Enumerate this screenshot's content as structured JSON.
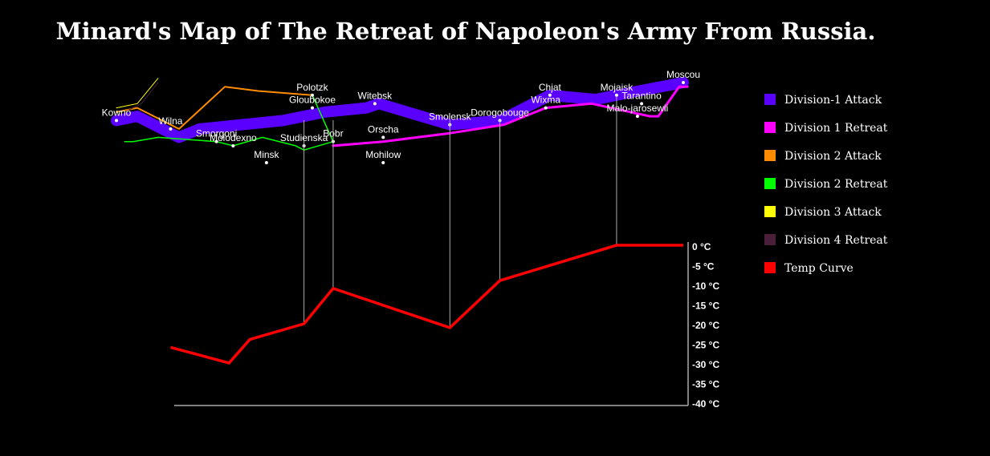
{
  "title": "Minard's Map of The Retreat of Napoleon's Army From Russia.",
  "chart_data": [
    {
      "type": "map",
      "description_role": "troop-movement",
      "cities": [
        {
          "name": "Kowno",
          "lon": 24.0,
          "lat": 54.9
        },
        {
          "name": "Wilna",
          "lon": 25.3,
          "lat": 54.7
        },
        {
          "name": "Smorgoni",
          "lon": 26.4,
          "lat": 54.4
        },
        {
          "name": "Moiodexno",
          "lon": 26.8,
          "lat": 54.3
        },
        {
          "name": "Gloubokoe",
          "lon": 28.7,
          "lat": 55.2
        },
        {
          "name": "Minsk",
          "lon": 27.6,
          "lat": 53.9
        },
        {
          "name": "Studienska",
          "lon": 28.5,
          "lat": 54.3
        },
        {
          "name": "Polotzk",
          "lon": 28.7,
          "lat": 55.5
        },
        {
          "name": "Bobr",
          "lon": 29.2,
          "lat": 54.4
        },
        {
          "name": "Witebsk",
          "lon": 30.2,
          "lat": 55.3
        },
        {
          "name": "Orscha",
          "lon": 30.4,
          "lat": 54.5
        },
        {
          "name": "Mohilow",
          "lon": 30.4,
          "lat": 53.9
        },
        {
          "name": "Smolensk",
          "lon": 32.0,
          "lat": 54.8
        },
        {
          "name": "Dorogobouge",
          "lon": 33.2,
          "lat": 54.9
        },
        {
          "name": "Wixma",
          "lon": 34.3,
          "lat": 55.2
        },
        {
          "name": "Chjat",
          "lon": 34.4,
          "lat": 55.5
        },
        {
          "name": "Mojaisk",
          "lon": 36.0,
          "lat": 55.5
        },
        {
          "name": "Moscou",
          "lon": 37.6,
          "lat": 55.8
        },
        {
          "name": "Tarantino",
          "lon": 36.6,
          "lat": 55.3
        },
        {
          "name": "Malo-jarosewli",
          "lon": 36.5,
          "lat": 55.0
        }
      ],
      "divisions": [
        {
          "name": "Division-1 Attack",
          "color": "#5a00ff",
          "survivors_scale": "thick",
          "path": [
            [
              24.0,
              54.9
            ],
            [
              24.5,
              55.0
            ],
            [
              25.5,
              54.5
            ],
            [
              26.0,
              54.7
            ],
            [
              27.0,
              54.8
            ],
            [
              28.0,
              54.9
            ],
            [
              28.5,
              55.0
            ],
            [
              29.0,
              55.1
            ],
            [
              30.0,
              55.2
            ],
            [
              30.3,
              55.3
            ],
            [
              32.0,
              54.8
            ],
            [
              33.2,
              54.9
            ],
            [
              34.4,
              55.5
            ],
            [
              35.5,
              55.4
            ],
            [
              36.0,
              55.5
            ],
            [
              37.6,
              55.8
            ]
          ]
        },
        {
          "name": "Division 1 Retreat",
          "color": "#ff00ff",
          "path": [
            [
              37.7,
              55.7
            ],
            [
              37.5,
              55.7
            ],
            [
              37.0,
              55.0
            ],
            [
              36.8,
              55.0
            ],
            [
              35.4,
              55.3
            ],
            [
              34.3,
              55.2
            ],
            [
              33.3,
              54.8
            ],
            [
              32.0,
              54.6
            ],
            [
              30.4,
              54.4
            ],
            [
              29.2,
              54.3
            ]
          ]
        },
        {
          "name": "Division 2 Attack",
          "color": "#ff8c00",
          "path": [
            [
              24.0,
              55.1
            ],
            [
              24.5,
              55.2
            ],
            [
              25.5,
              54.7
            ],
            [
              26.6,
              55.7
            ],
            [
              27.4,
              55.6
            ],
            [
              28.7,
              55.5
            ]
          ]
        },
        {
          "name": "Division 2 Retreat",
          "color": "#00ff00",
          "path": [
            [
              28.7,
              55.5
            ],
            [
              29.2,
              54.4
            ],
            [
              28.5,
              54.2
            ],
            [
              28.3,
              54.3
            ],
            [
              27.5,
              54.5
            ],
            [
              26.8,
              54.3
            ],
            [
              26.4,
              54.4
            ],
            [
              25.0,
              54.5
            ],
            [
              24.4,
              54.4
            ],
            [
              24.2,
              54.4
            ]
          ]
        },
        {
          "name": "Division 3 Attack",
          "color": "#ffff00",
          "path": [
            [
              24.0,
              55.2
            ],
            [
              24.5,
              55.3
            ],
            [
              25.0,
              55.9
            ]
          ]
        },
        {
          "name": "Division 4 Retreat",
          "color": "#4b1f3a",
          "path": [
            [
              25.0,
              55.8
            ],
            [
              24.6,
              55.3
            ],
            [
              24.2,
              55.1
            ]
          ]
        }
      ]
    },
    {
      "type": "line",
      "name": "Temp Curve",
      "color": "#ff0000",
      "x_lon": [
        37.6,
        36.0,
        33.2,
        32.0,
        29.2,
        28.5,
        27.2,
        26.7,
        25.3
      ],
      "y_temp": [
        0,
        0,
        -9,
        -21,
        -11,
        -20,
        -24,
        -30,
        -26
      ],
      "ylim": [
        -40,
        0
      ],
      "yticks": [
        0,
        -5,
        -10,
        -15,
        -20,
        -25,
        -30,
        -35,
        -40
      ],
      "tick_suffix": " °C"
    }
  ],
  "legend": [
    {
      "label": "Division-1 Attack",
      "color": "#5a00ff"
    },
    {
      "label": "Division 1 Retreat",
      "color": "#ff00ff"
    },
    {
      "label": "Division 2 Attack",
      "color": "#ff8c00"
    },
    {
      "label": "Division 2 Retreat",
      "color": "#00ff00"
    },
    {
      "label": "Division 3 Attack",
      "color": "#ffff00"
    },
    {
      "label": "Division 4 Retreat",
      "color": "#4b1f3a"
    },
    {
      "label": "Temp Curve",
      "color": "#ff0000"
    }
  ]
}
